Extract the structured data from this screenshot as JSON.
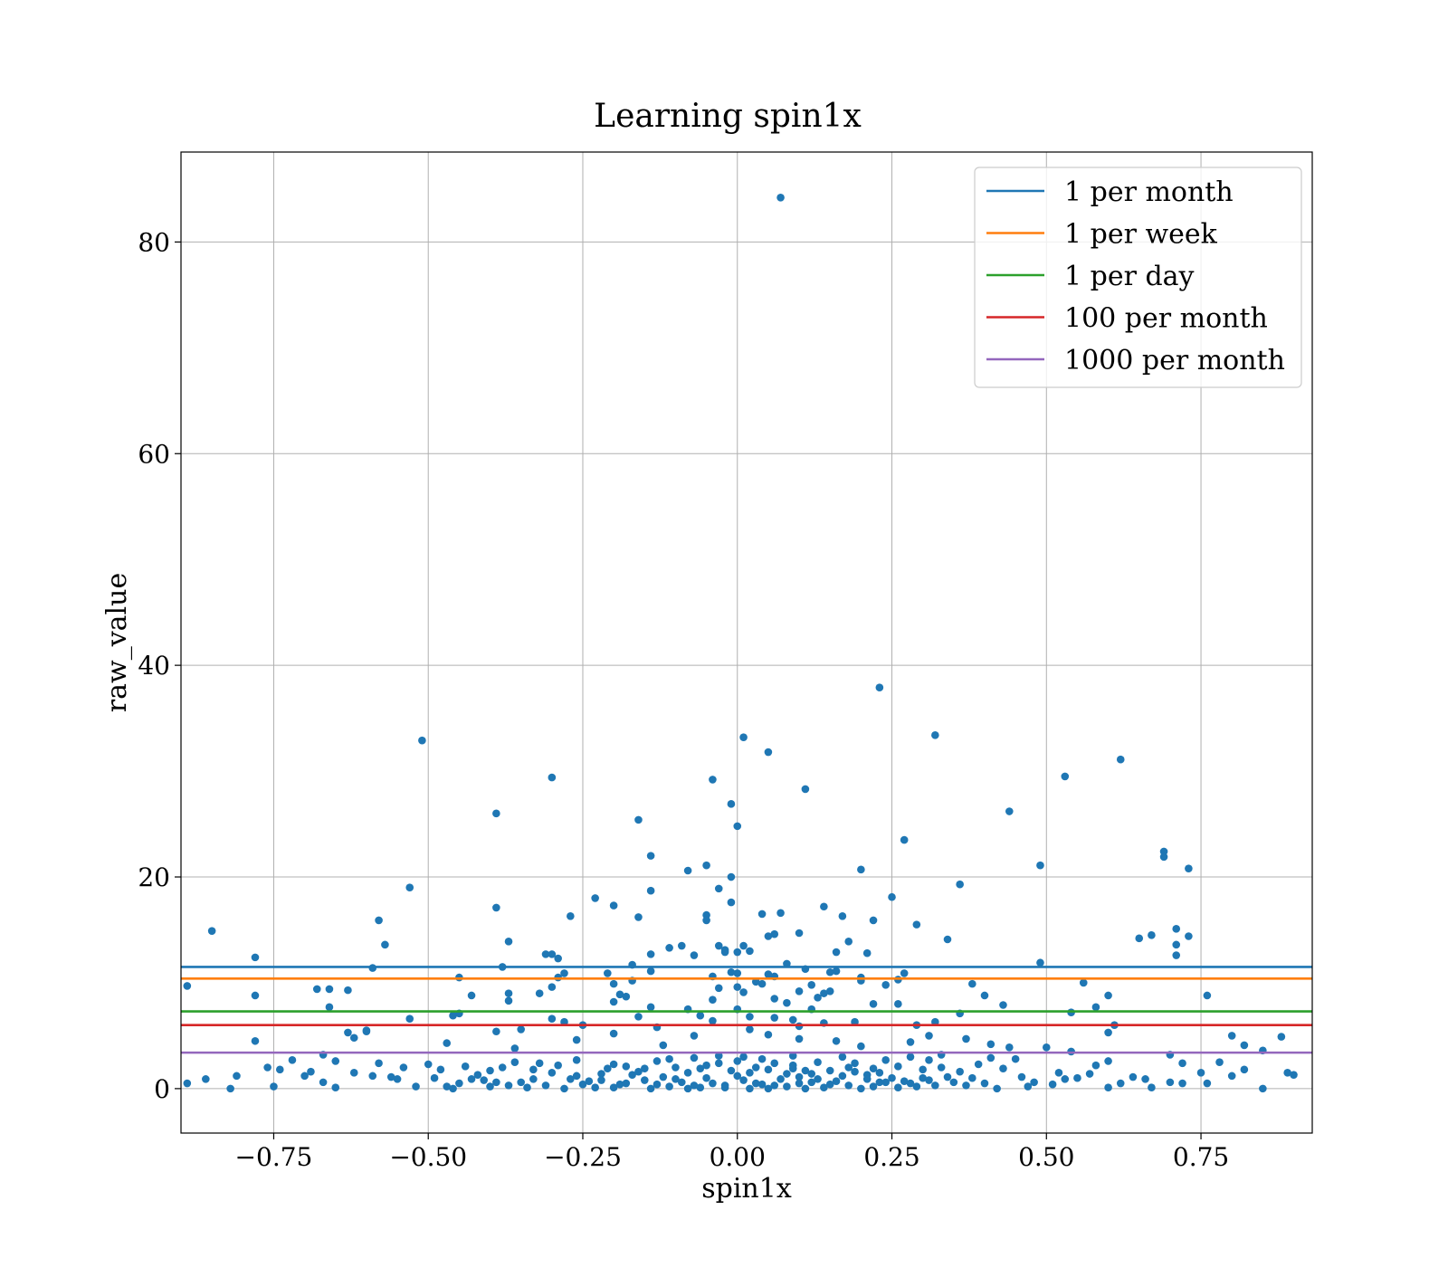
{
  "chart_data": {
    "type": "scatter",
    "title": "Learning spin1x",
    "xlabel": "spin1x",
    "ylabel": "raw_value",
    "xlim": [
      -0.9,
      0.93
    ],
    "ylim": [
      -4.2,
      88.5
    ],
    "xticks": [
      -0.75,
      -0.5,
      -0.25,
      0.0,
      0.25,
      0.5,
      0.75
    ],
    "xtick_labels": [
      "−0.75",
      "−0.50",
      "−0.25",
      "0.00",
      "0.25",
      "0.50",
      "0.75"
    ],
    "yticks": [
      0,
      20,
      40,
      60,
      80
    ],
    "ytick_labels": [
      "0",
      "20",
      "40",
      "60",
      "80"
    ],
    "grid": true,
    "legend_position": "top-right",
    "marker_color": "#1f77b4",
    "hlines": [
      {
        "name": "1 per month",
        "y": 11.5,
        "color": "#1f77b4"
      },
      {
        "name": "1 per week",
        "y": 10.4,
        "color": "#ff7f0e"
      },
      {
        "name": "1 per day",
        "y": 7.3,
        "color": "#2ca02c"
      },
      {
        "name": "100 per month",
        "y": 6.0,
        "color": "#d62728"
      },
      {
        "name": "1000 per month",
        "y": 3.4,
        "color": "#9467bd"
      }
    ],
    "points": [
      [
        0.07,
        84.2
      ],
      [
        0.23,
        37.9
      ],
      [
        0.32,
        33.4
      ],
      [
        0.01,
        33.2
      ],
      [
        -0.51,
        32.9
      ],
      [
        0.05,
        31.8
      ],
      [
        0.62,
        31.1
      ],
      [
        0.53,
        29.5
      ],
      [
        -0.3,
        29.4
      ],
      [
        -0.04,
        29.2
      ],
      [
        0.11,
        28.3
      ],
      [
        -0.01,
        26.9
      ],
      [
        -0.39,
        26.0
      ],
      [
        0.44,
        26.2
      ],
      [
        -0.16,
        25.4
      ],
      [
        0.0,
        24.8
      ],
      [
        0.27,
        23.5
      ],
      [
        0.69,
        22.4
      ],
      [
        0.69,
        21.9
      ],
      [
        -0.14,
        22.0
      ],
      [
        -0.05,
        21.1
      ],
      [
        0.49,
        21.1
      ],
      [
        -0.08,
        20.6
      ],
      [
        0.73,
        20.8
      ],
      [
        0.2,
        20.7
      ],
      [
        -0.01,
        20.0
      ],
      [
        0.36,
        19.3
      ],
      [
        -0.53,
        19.0
      ],
      [
        -0.03,
        18.9
      ],
      [
        -0.14,
        18.7
      ],
      [
        0.25,
        18.1
      ],
      [
        -0.23,
        18.0
      ],
      [
        -0.01,
        17.6
      ],
      [
        -0.2,
        17.3
      ],
      [
        0.14,
        17.2
      ],
      [
        -0.39,
        17.1
      ],
      [
        0.07,
        16.6
      ],
      [
        0.04,
        16.5
      ],
      [
        -0.05,
        16.4
      ],
      [
        0.17,
        16.3
      ],
      [
        -0.27,
        16.3
      ],
      [
        -0.16,
        16.2
      ],
      [
        0.22,
        15.9
      ],
      [
        -0.05,
        15.9
      ],
      [
        -0.58,
        15.9
      ],
      [
        0.29,
        15.5
      ],
      [
        -0.85,
        14.9
      ],
      [
        0.71,
        15.1
      ],
      [
        0.1,
        14.7
      ],
      [
        0.06,
        14.6
      ],
      [
        0.05,
        14.4
      ],
      [
        0.67,
        14.5
      ],
      [
        0.73,
        14.4
      ],
      [
        0.65,
        14.2
      ],
      [
        0.34,
        14.1
      ],
      [
        -0.37,
        13.9
      ],
      [
        0.18,
        13.9
      ],
      [
        -0.57,
        13.6
      ],
      [
        0.71,
        13.6
      ],
      [
        -0.03,
        13.5
      ],
      [
        -0.09,
        13.5
      ],
      [
        -0.11,
        13.3
      ],
      [
        0.01,
        13.5
      ],
      [
        -0.02,
        13.1
      ],
      [
        0.02,
        13.0
      ],
      [
        -0.02,
        12.9
      ],
      [
        0.0,
        12.9
      ],
      [
        0.16,
        12.9
      ],
      [
        -0.14,
        12.7
      ],
      [
        -0.07,
        12.6
      ],
      [
        -0.31,
        12.7
      ],
      [
        -0.3,
        12.7
      ],
      [
        0.71,
        12.6
      ],
      [
        0.21,
        12.8
      ],
      [
        -0.78,
        12.4
      ],
      [
        -0.29,
        12.3
      ],
      [
        0.49,
        11.9
      ],
      [
        -0.38,
        11.5
      ],
      [
        -0.59,
        11.4
      ],
      [
        -0.17,
        11.7
      ],
      [
        0.08,
        11.8
      ],
      [
        0.11,
        11.3
      ],
      [
        0.16,
        11.1
      ],
      [
        0.15,
        11.0
      ],
      [
        -0.01,
        11.0
      ],
      [
        0.0,
        10.9
      ],
      [
        -0.28,
        10.9
      ],
      [
        -0.21,
        10.9
      ],
      [
        0.05,
        10.8
      ],
      [
        0.27,
        10.9
      ],
      [
        -0.14,
        11.1
      ],
      [
        -0.04,
        10.6
      ],
      [
        -0.45,
        10.5
      ],
      [
        0.06,
        10.6
      ],
      [
        0.2,
        10.5
      ],
      [
        -0.29,
        10.5
      ],
      [
        -0.17,
        10.2
      ],
      [
        0.2,
        10.2
      ],
      [
        0.03,
        10.1
      ],
      [
        0.26,
        10.3
      ],
      [
        0.04,
        9.9
      ],
      [
        -0.2,
        9.9
      ],
      [
        0.56,
        10.0
      ],
      [
        0.38,
        9.9
      ],
      [
        0.12,
        9.8
      ],
      [
        0.24,
        9.8
      ],
      [
        0.0,
        9.6
      ],
      [
        -0.3,
        9.6
      ],
      [
        -0.03,
        9.5
      ],
      [
        -0.68,
        9.4
      ],
      [
        -0.66,
        9.4
      ],
      [
        -0.63,
        9.3
      ],
      [
        0.1,
        9.2
      ],
      [
        0.15,
        9.2
      ],
      [
        -0.89,
        9.7
      ],
      [
        0.14,
        9.0
      ],
      [
        0.01,
        9.1
      ],
      [
        -0.37,
        9.0
      ],
      [
        -0.32,
        9.0
      ],
      [
        -0.19,
        8.9
      ],
      [
        -0.43,
        8.8
      ],
      [
        0.4,
        8.8
      ],
      [
        0.76,
        8.8
      ],
      [
        0.6,
        8.8
      ],
      [
        -0.78,
        8.8
      ],
      [
        -0.18,
        8.7
      ],
      [
        0.06,
        8.5
      ],
      [
        0.13,
        8.6
      ],
      [
        -0.04,
        8.4
      ],
      [
        -0.37,
        8.3
      ],
      [
        0.08,
        8.1
      ],
      [
        -0.2,
        8.2
      ],
      [
        0.22,
        8.0
      ],
      [
        0.26,
        8.0
      ],
      [
        -0.66,
        7.7
      ],
      [
        0.43,
        7.9
      ],
      [
        0.58,
        7.7
      ],
      [
        -0.14,
        7.7
      ],
      [
        0.12,
        7.5
      ],
      [
        -0.08,
        7.5
      ],
      [
        0.0,
        7.5
      ],
      [
        0.54,
        7.2
      ],
      [
        0.36,
        7.1
      ],
      [
        -0.45,
        7.1
      ],
      [
        -0.46,
        6.9
      ],
      [
        -0.06,
        6.9
      ],
      [
        0.02,
        6.8
      ],
      [
        -0.16,
        6.8
      ],
      [
        0.06,
        6.7
      ],
      [
        -0.3,
        6.6
      ],
      [
        -0.53,
        6.6
      ],
      [
        0.09,
        6.5
      ],
      [
        -0.04,
        6.4
      ],
      [
        0.19,
        6.3
      ],
      [
        0.32,
        6.3
      ],
      [
        -0.28,
        6.3
      ],
      [
        0.14,
        6.2
      ],
      [
        0.29,
        6.0
      ],
      [
        -0.25,
        6.0
      ],
      [
        0.61,
        6.0
      ],
      [
        0.1,
        5.9
      ],
      [
        -0.13,
        5.8
      ],
      [
        -0.35,
        5.6
      ],
      [
        0.02,
        5.6
      ],
      [
        -0.6,
        5.5
      ],
      [
        -0.6,
        5.4
      ],
      [
        -0.39,
        5.4
      ],
      [
        -0.63,
        5.3
      ],
      [
        0.6,
        5.3
      ],
      [
        -0.2,
        5.2
      ],
      [
        0.05,
        5.1
      ],
      [
        0.8,
        5.0
      ],
      [
        0.31,
        5.0
      ],
      [
        0.88,
        4.9
      ],
      [
        -0.07,
        5.0
      ],
      [
        -0.62,
        4.8
      ],
      [
        0.37,
        4.7
      ],
      [
        0.1,
        4.7
      ],
      [
        -0.26,
        4.6
      ],
      [
        -0.78,
        4.5
      ],
      [
        0.16,
        4.5
      ],
      [
        0.28,
        4.4
      ],
      [
        -0.47,
        4.3
      ],
      [
        0.41,
        4.2
      ],
      [
        0.82,
        4.1
      ],
      [
        -0.12,
        4.1
      ],
      [
        0.2,
        4.0
      ],
      [
        0.44,
        3.9
      ],
      [
        0.5,
        3.9
      ],
      [
        -0.36,
        3.8
      ],
      [
        0.85,
        3.6
      ],
      [
        0.54,
        3.5
      ],
      [
        0.7,
        3.2
      ],
      [
        -0.67,
        3.2
      ],
      [
        0.33,
        3.2
      ],
      [
        -0.72,
        2.7
      ],
      [
        0.45,
        2.8
      ],
      [
        0.6,
        2.6
      ],
      [
        -0.65,
        2.6
      ],
      [
        0.78,
        2.5
      ],
      [
        0.72,
        2.4
      ],
      [
        -0.58,
        2.4
      ],
      [
        -0.5,
        2.3
      ],
      [
        0.58,
        2.2
      ],
      [
        -0.76,
        2.0
      ],
      [
        0.82,
        1.8
      ],
      [
        0.89,
        1.5
      ],
      [
        -0.4,
        1.7
      ],
      [
        0.9,
        1.3
      ],
      [
        0.75,
        1.5
      ],
      [
        0.8,
        1.2
      ],
      [
        -0.81,
        1.2
      ],
      [
        -0.7,
        1.2
      ],
      [
        -0.86,
        0.9
      ],
      [
        0.52,
        1.5
      ],
      [
        0.55,
        1.0
      ],
      [
        -0.55,
        0.9
      ],
      [
        0.64,
        1.1
      ],
      [
        0.7,
        0.6
      ],
      [
        -0.89,
        0.5
      ],
      [
        0.72,
        0.5
      ],
      [
        0.76,
        0.5
      ],
      [
        -0.82,
        0.0
      ],
      [
        -0.65,
        0.1
      ],
      [
        -0.75,
        0.2
      ],
      [
        0.85,
        0.0
      ],
      [
        0.6,
        0.1
      ],
      [
        0.67,
        0.1
      ],
      [
        0.3,
        1.0
      ],
      [
        0.31,
        0.8
      ],
      [
        0.34,
        1.1
      ],
      [
        -0.25,
        0.4
      ],
      [
        -0.22,
        1.4
      ],
      [
        -0.1,
        2.0
      ],
      [
        -0.05,
        1.0
      ],
      [
        -0.02,
        0.3
      ],
      [
        0.03,
        0.5
      ],
      [
        0.05,
        1.8
      ],
      [
        0.08,
        0.2
      ],
      [
        0.1,
        1.1
      ],
      [
        0.12,
        0.6
      ],
      [
        0.15,
        1.7
      ],
      [
        0.18,
        0.3
      ],
      [
        0.21,
        1.3
      ],
      [
        0.24,
        0.6
      ],
      [
        0.26,
        2.1
      ],
      [
        -0.15,
        0.8
      ],
      [
        -0.13,
        2.6
      ],
      [
        -0.11,
        0.2
      ],
      [
        -0.08,
        1.5
      ],
      [
        -0.06,
        0.1
      ],
      [
        -0.03,
        2.4
      ],
      [
        0.0,
        1.2
      ],
      [
        0.02,
        0.0
      ],
      [
        0.04,
        2.8
      ],
      [
        0.07,
        0.9
      ],
      [
        0.09,
        1.9
      ],
      [
        0.11,
        0.0
      ],
      [
        0.13,
        2.5
      ],
      [
        0.16,
        0.7
      ],
      [
        0.19,
        1.6
      ],
      [
        0.22,
        0.2
      ],
      [
        0.25,
        1.0
      ],
      [
        0.28,
        0.5
      ],
      [
        -0.35,
        0.6
      ],
      [
        -0.33,
        1.8
      ],
      [
        -0.31,
        0.3
      ],
      [
        -0.29,
        2.2
      ],
      [
        -0.27,
        0.9
      ],
      [
        -0.23,
        0.1
      ],
      [
        -0.21,
        1.9
      ],
      [
        -0.19,
        0.4
      ],
      [
        -0.17,
        1.3
      ],
      [
        -0.14,
        0.0
      ],
      [
        -0.12,
        1.1
      ],
      [
        -0.09,
        0.6
      ],
      [
        -0.07,
        2.9
      ],
      [
        -0.04,
        0.5
      ],
      [
        -0.01,
        1.7
      ],
      [
        0.01,
        0.8
      ],
      [
        0.03,
        2.0
      ],
      [
        0.06,
        0.3
      ],
      [
        0.08,
        1.4
      ],
      [
        0.1,
        0.5
      ],
      [
        0.14,
        0.1
      ],
      [
        0.17,
        1.2
      ],
      [
        0.2,
        0.0
      ],
      [
        0.23,
        1.5
      ],
      [
        0.27,
        0.7
      ],
      [
        0.32,
        0.3
      ],
      [
        0.36,
        1.6
      ],
      [
        0.4,
        0.5
      ],
      [
        0.43,
        1.9
      ],
      [
        0.47,
        0.2
      ],
      [
        -0.45,
        0.5
      ],
      [
        -0.42,
        1.3
      ],
      [
        -0.4,
        0.2
      ],
      [
        -0.38,
        2.0
      ],
      [
        -0.34,
        0.1
      ],
      [
        -0.3,
        1.5
      ],
      [
        -0.26,
        2.7
      ],
      [
        -0.24,
        0.7
      ],
      [
        -0.2,
        2.3
      ],
      [
        -0.18,
        0.5
      ],
      [
        -0.16,
        1.6
      ],
      [
        -0.1,
        0.9
      ],
      [
        -0.06,
        1.9
      ],
      [
        -0.02,
        0.1
      ],
      [
        0.0,
        2.6
      ],
      [
        0.04,
        0.4
      ],
      [
        0.09,
        2.2
      ],
      [
        0.12,
        1.4
      ],
      [
        0.18,
        2.0
      ],
      [
        0.21,
        0.9
      ],
      [
        0.24,
        2.7
      ],
      [
        0.29,
        0.2
      ],
      [
        0.33,
        2.0
      ],
      [
        0.38,
        1.0
      ],
      [
        -0.48,
        1.8
      ],
      [
        -0.47,
        0.2
      ],
      [
        -0.44,
        2.1
      ],
      [
        -0.41,
        0.8
      ],
      [
        -0.37,
        0.3
      ],
      [
        -0.32,
        2.4
      ],
      [
        -0.28,
        0.0
      ],
      [
        -0.22,
        0.8
      ],
      [
        -0.18,
        2.1
      ],
      [
        -0.13,
        0.4
      ],
      [
        -0.08,
        0.0
      ],
      [
        -0.05,
        2.2
      ],
      [
        0.02,
        1.5
      ],
      [
        0.06,
        2.4
      ],
      [
        0.11,
        1.7
      ],
      [
        0.15,
        0.4
      ],
      [
        0.19,
        2.4
      ],
      [
        0.23,
        0.6
      ],
      [
        0.26,
        0.1
      ],
      [
        0.3,
        1.8
      ],
      [
        0.35,
        0.6
      ],
      [
        0.39,
        2.3
      ],
      [
        0.42,
        0.0
      ],
      [
        0.46,
        1.1
      ],
      [
        -0.52,
        0.2
      ],
      [
        -0.49,
        1.0
      ],
      [
        -0.46,
        0.0
      ],
      [
        -0.43,
        0.9
      ],
      [
        -0.39,
        0.6
      ],
      [
        -0.36,
        2.5
      ],
      [
        -0.33,
        0.9
      ],
      [
        -0.26,
        1.2
      ],
      [
        -0.2,
        0.1
      ],
      [
        -0.15,
        1.9
      ],
      [
        -0.11,
        2.8
      ],
      [
        -0.07,
        0.3
      ],
      [
        -0.03,
        3.1
      ],
      [
        0.01,
        3.0
      ],
      [
        0.05,
        0.0
      ],
      [
        0.09,
        3.1
      ],
      [
        0.13,
        0.9
      ],
      [
        0.17,
        3.0
      ],
      [
        0.22,
        1.9
      ],
      [
        0.28,
        3.0
      ],
      [
        0.31,
        2.7
      ],
      [
        0.37,
        0.3
      ],
      [
        0.41,
        2.9
      ],
      [
        0.48,
        0.6
      ],
      [
        0.51,
        0.4
      ],
      [
        0.53,
        0.9
      ],
      [
        0.57,
        1.4
      ],
      [
        0.62,
        0.5
      ],
      [
        0.66,
        0.9
      ],
      [
        -0.56,
        1.1
      ],
      [
        -0.54,
        2.0
      ],
      [
        -0.62,
        1.5
      ],
      [
        -0.69,
        1.6
      ],
      [
        -0.74,
        1.8
      ],
      [
        -0.67,
        0.6
      ],
      [
        -0.59,
        1.2
      ]
    ]
  }
}
